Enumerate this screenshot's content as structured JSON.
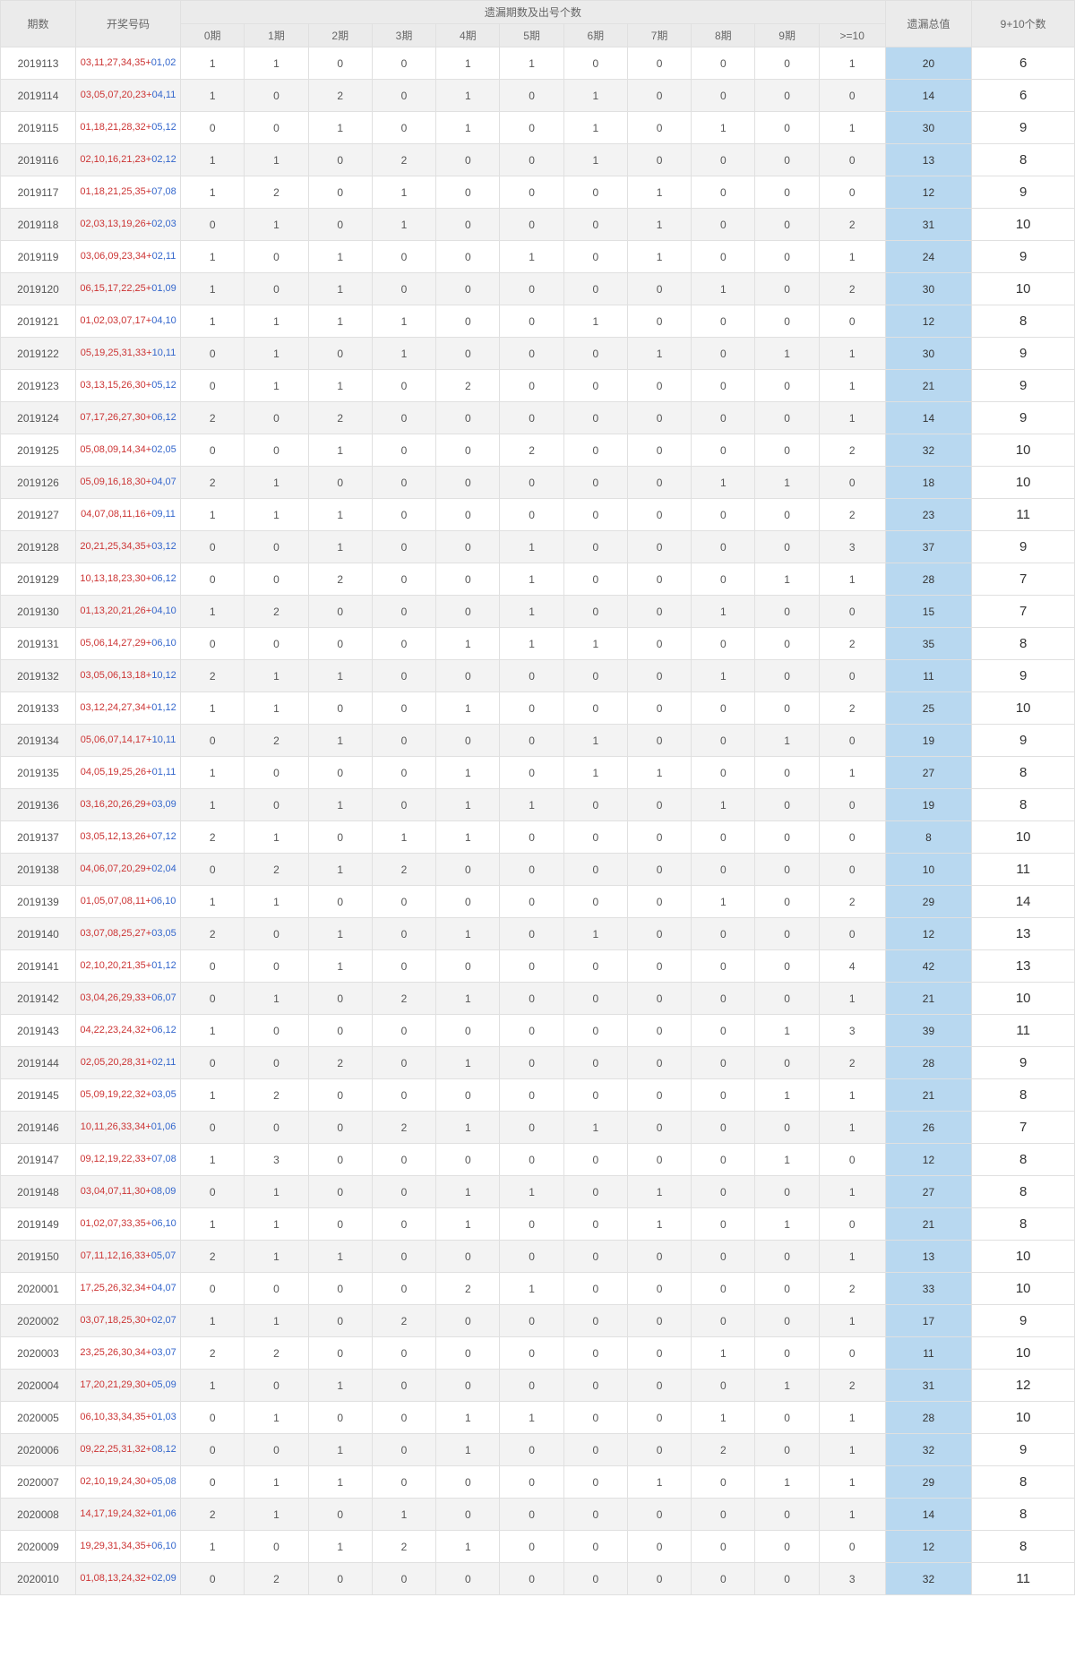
{
  "headers": {
    "period": "期数",
    "numbers": "开奖号码",
    "miss_group": "遗漏期数及出号个数",
    "miss_cols": [
      "0期",
      "1期",
      "2期",
      "3期",
      "4期",
      "5期",
      "6期",
      "7期",
      "8期",
      "9期",
      ">=10"
    ],
    "total": "遗漏总值",
    "count": "9+10个数"
  },
  "colors": {
    "header_bg": "#ebebeb",
    "header_text": "#666666",
    "border": "#e0e0e0",
    "cell_text": "#555555",
    "red": "#cc3333",
    "blue": "#3366cc",
    "total_bg": "#b8d8f0",
    "even_row_bg": "#f3f3f3",
    "odd_row_bg": "#ffffff"
  },
  "rows": [
    {
      "period": "2019113",
      "red": "03,11,27,34,35",
      "blue": "01,02",
      "miss": [
        1,
        1,
        0,
        0,
        1,
        1,
        0,
        0,
        0,
        0,
        1
      ],
      "total": 20,
      "count": 6
    },
    {
      "period": "2019114",
      "red": "03,05,07,20,23",
      "blue": "04,11",
      "miss": [
        1,
        0,
        2,
        0,
        1,
        0,
        1,
        0,
        0,
        0,
        0
      ],
      "total": 14,
      "count": 6
    },
    {
      "period": "2019115",
      "red": "01,18,21,28,32",
      "blue": "05,12",
      "miss": [
        0,
        0,
        1,
        0,
        1,
        0,
        1,
        0,
        1,
        0,
        1
      ],
      "total": 30,
      "count": 9
    },
    {
      "period": "2019116",
      "red": "02,10,16,21,23",
      "blue": "02,12",
      "miss": [
        1,
        1,
        0,
        2,
        0,
        0,
        1,
        0,
        0,
        0,
        0
      ],
      "total": 13,
      "count": 8
    },
    {
      "period": "2019117",
      "red": "01,18,21,25,35",
      "blue": "07,08",
      "miss": [
        1,
        2,
        0,
        1,
        0,
        0,
        0,
        1,
        0,
        0,
        0
      ],
      "total": 12,
      "count": 9
    },
    {
      "period": "2019118",
      "red": "02,03,13,19,26",
      "blue": "02,03",
      "miss": [
        0,
        1,
        0,
        1,
        0,
        0,
        0,
        1,
        0,
        0,
        2
      ],
      "total": 31,
      "count": 10
    },
    {
      "period": "2019119",
      "red": "03,06,09,23,34",
      "blue": "02,11",
      "miss": [
        1,
        0,
        1,
        0,
        0,
        1,
        0,
        1,
        0,
        0,
        1
      ],
      "total": 24,
      "count": 9
    },
    {
      "period": "2019120",
      "red": "06,15,17,22,25",
      "blue": "01,09",
      "miss": [
        1,
        0,
        1,
        0,
        0,
        0,
        0,
        0,
        1,
        0,
        2
      ],
      "total": 30,
      "count": 10
    },
    {
      "period": "2019121",
      "red": "01,02,03,07,17",
      "blue": "04,10",
      "miss": [
        1,
        1,
        1,
        1,
        0,
        0,
        1,
        0,
        0,
        0,
        0
      ],
      "total": 12,
      "count": 8
    },
    {
      "period": "2019122",
      "red": "05,19,25,31,33",
      "blue": "10,11",
      "miss": [
        0,
        1,
        0,
        1,
        0,
        0,
        0,
        1,
        0,
        1,
        1
      ],
      "total": 30,
      "count": 9
    },
    {
      "period": "2019123",
      "red": "03,13,15,26,30",
      "blue": "05,12",
      "miss": [
        0,
        1,
        1,
        0,
        2,
        0,
        0,
        0,
        0,
        0,
        1
      ],
      "total": 21,
      "count": 9
    },
    {
      "period": "2019124",
      "red": "07,17,26,27,30",
      "blue": "06,12",
      "miss": [
        2,
        0,
        2,
        0,
        0,
        0,
        0,
        0,
        0,
        0,
        1
      ],
      "total": 14,
      "count": 9
    },
    {
      "period": "2019125",
      "red": "05,08,09,14,34",
      "blue": "02,05",
      "miss": [
        0,
        0,
        1,
        0,
        0,
        2,
        0,
        0,
        0,
        0,
        2
      ],
      "total": 32,
      "count": 10
    },
    {
      "period": "2019126",
      "red": "05,09,16,18,30",
      "blue": "04,07",
      "miss": [
        2,
        1,
        0,
        0,
        0,
        0,
        0,
        0,
        1,
        1,
        0
      ],
      "total": 18,
      "count": 10
    },
    {
      "period": "2019127",
      "red": "04,07,08,11,16",
      "blue": "09,11",
      "miss": [
        1,
        1,
        1,
        0,
        0,
        0,
        0,
        0,
        0,
        0,
        2
      ],
      "total": 23,
      "count": 11
    },
    {
      "period": "2019128",
      "red": "20,21,25,34,35",
      "blue": "03,12",
      "miss": [
        0,
        0,
        1,
        0,
        0,
        1,
        0,
        0,
        0,
        0,
        3
      ],
      "total": 37,
      "count": 9
    },
    {
      "period": "2019129",
      "red": "10,13,18,23,30",
      "blue": "06,12",
      "miss": [
        0,
        0,
        2,
        0,
        0,
        1,
        0,
        0,
        0,
        1,
        1
      ],
      "total": 28,
      "count": 7
    },
    {
      "period": "2019130",
      "red": "01,13,20,21,26",
      "blue": "04,10",
      "miss": [
        1,
        2,
        0,
        0,
        0,
        1,
        0,
        0,
        1,
        0,
        0
      ],
      "total": 15,
      "count": 7
    },
    {
      "period": "2019131",
      "red": "05,06,14,27,29",
      "blue": "06,10",
      "miss": [
        0,
        0,
        0,
        0,
        1,
        1,
        1,
        0,
        0,
        0,
        2
      ],
      "total": 35,
      "count": 8
    },
    {
      "period": "2019132",
      "red": "03,05,06,13,18",
      "blue": "10,12",
      "miss": [
        2,
        1,
        1,
        0,
        0,
        0,
        0,
        0,
        1,
        0,
        0
      ],
      "total": 11,
      "count": 9
    },
    {
      "period": "2019133",
      "red": "03,12,24,27,34",
      "blue": "01,12",
      "miss": [
        1,
        1,
        0,
        0,
        1,
        0,
        0,
        0,
        0,
        0,
        2
      ],
      "total": 25,
      "count": 10
    },
    {
      "period": "2019134",
      "red": "05,06,07,14,17",
      "blue": "10,11",
      "miss": [
        0,
        2,
        1,
        0,
        0,
        0,
        1,
        0,
        0,
        1,
        0
      ],
      "total": 19,
      "count": 9
    },
    {
      "period": "2019135",
      "red": "04,05,19,25,26",
      "blue": "01,11",
      "miss": [
        1,
        0,
        0,
        0,
        1,
        0,
        1,
        1,
        0,
        0,
        1
      ],
      "total": 27,
      "count": 8
    },
    {
      "period": "2019136",
      "red": "03,16,20,26,29",
      "blue": "03,09",
      "miss": [
        1,
        0,
        1,
        0,
        1,
        1,
        0,
        0,
        1,
        0,
        0
      ],
      "total": 19,
      "count": 8
    },
    {
      "period": "2019137",
      "red": "03,05,12,13,26",
      "blue": "07,12",
      "miss": [
        2,
        1,
        0,
        1,
        1,
        0,
        0,
        0,
        0,
        0,
        0
      ],
      "total": 8,
      "count": 10
    },
    {
      "period": "2019138",
      "red": "04,06,07,20,29",
      "blue": "02,04",
      "miss": [
        0,
        2,
        1,
        2,
        0,
        0,
        0,
        0,
        0,
        0,
        0
      ],
      "total": 10,
      "count": 11
    },
    {
      "period": "2019139",
      "red": "01,05,07,08,11",
      "blue": "06,10",
      "miss": [
        1,
        1,
        0,
        0,
        0,
        0,
        0,
        0,
        1,
        0,
        2
      ],
      "total": 29,
      "count": 14
    },
    {
      "period": "2019140",
      "red": "03,07,08,25,27",
      "blue": "03,05",
      "miss": [
        2,
        0,
        1,
        0,
        1,
        0,
        1,
        0,
        0,
        0,
        0
      ],
      "total": 12,
      "count": 13
    },
    {
      "period": "2019141",
      "red": "02,10,20,21,35",
      "blue": "01,12",
      "miss": [
        0,
        0,
        1,
        0,
        0,
        0,
        0,
        0,
        0,
        0,
        4
      ],
      "total": 42,
      "count": 13
    },
    {
      "period": "2019142",
      "red": "03,04,26,29,33",
      "blue": "06,07",
      "miss": [
        0,
        1,
        0,
        2,
        1,
        0,
        0,
        0,
        0,
        0,
        1
      ],
      "total": 21,
      "count": 10
    },
    {
      "period": "2019143",
      "red": "04,22,23,24,32",
      "blue": "06,12",
      "miss": [
        1,
        0,
        0,
        0,
        0,
        0,
        0,
        0,
        0,
        1,
        3
      ],
      "total": 39,
      "count": 11
    },
    {
      "period": "2019144",
      "red": "02,05,20,28,31",
      "blue": "02,11",
      "miss": [
        0,
        0,
        2,
        0,
        1,
        0,
        0,
        0,
        0,
        0,
        2
      ],
      "total": 28,
      "count": 9
    },
    {
      "period": "2019145",
      "red": "05,09,19,22,32",
      "blue": "03,05",
      "miss": [
        1,
        2,
        0,
        0,
        0,
        0,
        0,
        0,
        0,
        1,
        1
      ],
      "total": 21,
      "count": 8
    },
    {
      "period": "2019146",
      "red": "10,11,26,33,34",
      "blue": "01,06",
      "miss": [
        0,
        0,
        0,
        2,
        1,
        0,
        1,
        0,
        0,
        0,
        1
      ],
      "total": 26,
      "count": 7
    },
    {
      "period": "2019147",
      "red": "09,12,19,22,33",
      "blue": "07,08",
      "miss": [
        1,
        3,
        0,
        0,
        0,
        0,
        0,
        0,
        0,
        1,
        0
      ],
      "total": 12,
      "count": 8
    },
    {
      "period": "2019148",
      "red": "03,04,07,11,30",
      "blue": "08,09",
      "miss": [
        0,
        1,
        0,
        0,
        1,
        1,
        0,
        1,
        0,
        0,
        1
      ],
      "total": 27,
      "count": 8
    },
    {
      "period": "2019149",
      "red": "01,02,07,33,35",
      "blue": "06,10",
      "miss": [
        1,
        1,
        0,
        0,
        1,
        0,
        0,
        1,
        0,
        1,
        0
      ],
      "total": 21,
      "count": 8
    },
    {
      "period": "2019150",
      "red": "07,11,12,16,33",
      "blue": "05,07",
      "miss": [
        2,
        1,
        1,
        0,
        0,
        0,
        0,
        0,
        0,
        0,
        1
      ],
      "total": 13,
      "count": 10
    },
    {
      "period": "2020001",
      "red": "17,25,26,32,34",
      "blue": "04,07",
      "miss": [
        0,
        0,
        0,
        0,
        2,
        1,
        0,
        0,
        0,
        0,
        2
      ],
      "total": 33,
      "count": 10
    },
    {
      "period": "2020002",
      "red": "03,07,18,25,30",
      "blue": "02,07",
      "miss": [
        1,
        1,
        0,
        2,
        0,
        0,
        0,
        0,
        0,
        0,
        1
      ],
      "total": 17,
      "count": 9
    },
    {
      "period": "2020003",
      "red": "23,25,26,30,34",
      "blue": "03,07",
      "miss": [
        2,
        2,
        0,
        0,
        0,
        0,
        0,
        0,
        1,
        0,
        0
      ],
      "total": 11,
      "count": 10
    },
    {
      "period": "2020004",
      "red": "17,20,21,29,30",
      "blue": "05,09",
      "miss": [
        1,
        0,
        1,
        0,
        0,
        0,
        0,
        0,
        0,
        1,
        2
      ],
      "total": 31,
      "count": 12
    },
    {
      "period": "2020005",
      "red": "06,10,33,34,35",
      "blue": "01,03",
      "miss": [
        0,
        1,
        0,
        0,
        1,
        1,
        0,
        0,
        1,
        0,
        1
      ],
      "total": 28,
      "count": 10
    },
    {
      "period": "2020006",
      "red": "09,22,25,31,32",
      "blue": "08,12",
      "miss": [
        0,
        0,
        1,
        0,
        1,
        0,
        0,
        0,
        2,
        0,
        1
      ],
      "total": 32,
      "count": 9
    },
    {
      "period": "2020007",
      "red": "02,10,19,24,30",
      "blue": "05,08",
      "miss": [
        0,
        1,
        1,
        0,
        0,
        0,
        0,
        1,
        0,
        1,
        1
      ],
      "total": 29,
      "count": 8
    },
    {
      "period": "2020008",
      "red": "14,17,19,24,32",
      "blue": "01,06",
      "miss": [
        2,
        1,
        0,
        1,
        0,
        0,
        0,
        0,
        0,
        0,
        1
      ],
      "total": 14,
      "count": 8
    },
    {
      "period": "2020009",
      "red": "19,29,31,34,35",
      "blue": "06,10",
      "miss": [
        1,
        0,
        1,
        2,
        1,
        0,
        0,
        0,
        0,
        0,
        0
      ],
      "total": 12,
      "count": 8
    },
    {
      "period": "2020010",
      "red": "01,08,13,24,32",
      "blue": "02,09",
      "miss": [
        0,
        2,
        0,
        0,
        0,
        0,
        0,
        0,
        0,
        0,
        3
      ],
      "total": 32,
      "count": 11
    }
  ]
}
